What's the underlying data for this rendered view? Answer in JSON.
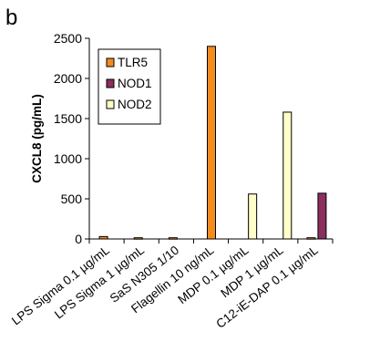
{
  "panel_label": "b",
  "chart_data": {
    "type": "bar",
    "categories": [
      "LPS Sigma 0.1 µg/mL",
      "LPS Sigma 1 µg/mL",
      "SaS N305  1/10",
      "Flagellin 10 ng/mL",
      "MDP 0.1 µg/mL",
      "MDP 1 µg/mL",
      "C12-iE-DAP 0.1 µg/mL"
    ],
    "series": [
      {
        "name": "TLR5",
        "color": "#f28c1e",
        "values": [
          30,
          15,
          15,
          2400,
          0,
          0,
          15
        ]
      },
      {
        "name": "NOD1",
        "color": "#8b2f5f",
        "values": [
          0,
          0,
          0,
          0,
          0,
          0,
          570
        ]
      },
      {
        "name": "NOD2",
        "color": "#ffffc8",
        "values": [
          0,
          0,
          0,
          0,
          560,
          1580,
          0
        ]
      }
    ],
    "xlabel": "",
    "ylabel": "CXCL8  (pg/mL)",
    "ylim": [
      0,
      2500
    ],
    "yticks": [
      0,
      500,
      1000,
      1500,
      2000,
      2500
    ],
    "grid": false,
    "legend_position": "top-left"
  }
}
